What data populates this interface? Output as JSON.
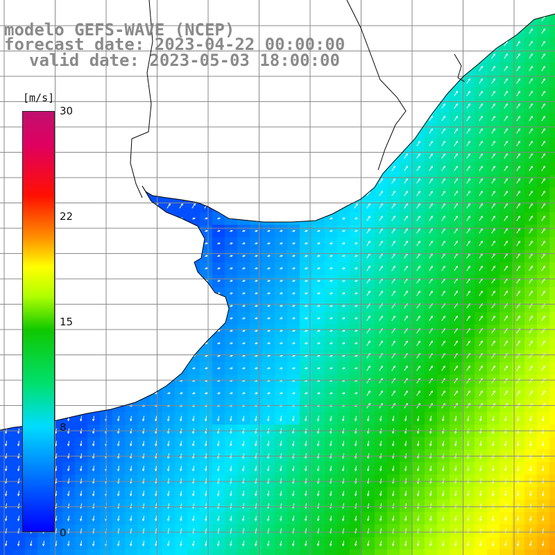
{
  "title": {
    "line1": "modelo GEFS-WAVE (NCEP)",
    "line2": "forecast date: 2023-04-22 00:00:00",
    "line3": "valid date: 2023-05-03 18:00:00"
  },
  "colorbar": {
    "unit": "[m/s]",
    "ticks": [
      "30",
      "22",
      "15",
      "8",
      "0"
    ],
    "range": [
      0,
      30
    ],
    "colors": [
      "#0000ff",
      "#008cff",
      "#00dcff",
      "#00e070",
      "#10c800",
      "#b0ff00",
      "#ffff00",
      "#ff9000",
      "#ff1000",
      "#c0106e"
    ]
  },
  "map": {
    "land_color": "#ffffff",
    "coastline_color": "#000000",
    "grid_color": "#888888",
    "arrow_color": "#ffffff",
    "parameter": "wind speed and direction"
  }
}
